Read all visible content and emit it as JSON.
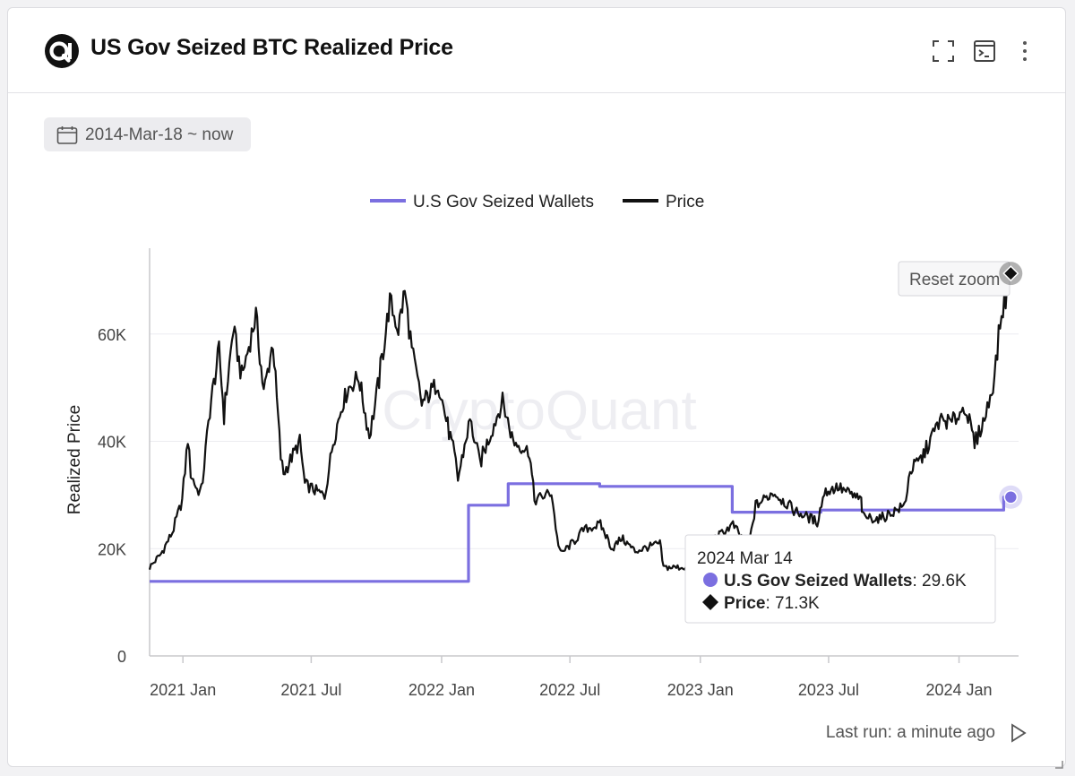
{
  "header": {
    "title": "US Gov Seized BTC Realized Price",
    "icons": [
      "fullscreen-icon",
      "terminal-icon",
      "more-vertical-icon"
    ]
  },
  "date_range": "2014-Mar-18 ~ now",
  "watermark": "CryptoQuant",
  "reset_zoom_label": "Reset zoom",
  "tooltip": {
    "date": "2024 Mar 14",
    "rows": [
      {
        "label": "U.S Gov Seized Wallets",
        "value": "29.6K"
      },
      {
        "label": "Price",
        "value": "71.3K"
      }
    ]
  },
  "footer": {
    "last_run": "Last run: a minute ago"
  },
  "colors": {
    "seized": "#7b6fe0",
    "price": "#111111",
    "grid": "#ececf0",
    "axis_text": "#444444"
  },
  "chart_data": {
    "type": "line",
    "title": "",
    "xlabel": "",
    "ylabel": "Realized Price",
    "x_tick_labels": [
      "2021 Jan",
      "2021 Jul",
      "2022 Jan",
      "2022 Jul",
      "2023 Jan",
      "2023 Jul",
      "2024 Jan"
    ],
    "y_tick_labels": [
      "0",
      "20K",
      "40K",
      "60K"
    ],
    "x_range": [
      "2020-11-15",
      "2024-03-25"
    ],
    "ylim": [
      0,
      76000
    ],
    "grid": true,
    "legend_position": "top-center",
    "series": [
      {
        "name": "U.S Gov Seized Wallets",
        "color": "#7b6fe0",
        "step": true,
        "points": [
          [
            "2020-11-15",
            13900
          ],
          [
            "2022-02-08",
            13900
          ],
          [
            "2022-02-08",
            28100
          ],
          [
            "2022-04-05",
            28100
          ],
          [
            "2022-04-05",
            32100
          ],
          [
            "2022-08-12",
            32100
          ],
          [
            "2022-08-12",
            31600
          ],
          [
            "2023-02-15",
            31600
          ],
          [
            "2023-02-15",
            26800
          ],
          [
            "2023-06-20",
            26800
          ],
          [
            "2023-06-20",
            27200
          ],
          [
            "2024-03-04",
            27200
          ],
          [
            "2024-03-04",
            29600
          ],
          [
            "2024-03-14",
            29600
          ]
        ]
      },
      {
        "name": "Price",
        "color": "#111111",
        "points": [
          [
            "2020-11-15",
            16500
          ],
          [
            "2020-12-01",
            19000
          ],
          [
            "2020-12-17",
            23000
          ],
          [
            "2020-12-31",
            29000
          ],
          [
            "2021-01-08",
            40500
          ],
          [
            "2021-01-12",
            34000
          ],
          [
            "2021-01-21",
            31000
          ],
          [
            "2021-01-27",
            30500
          ],
          [
            "2021-02-08",
            46000
          ],
          [
            "2021-02-21",
            57000
          ],
          [
            "2021-02-28",
            45000
          ],
          [
            "2021-03-13",
            61000
          ],
          [
            "2021-03-25",
            52000
          ],
          [
            "2021-04-14",
            63500
          ],
          [
            "2021-04-25",
            49000
          ],
          [
            "2021-05-08",
            58500
          ],
          [
            "2021-05-19",
            37000
          ],
          [
            "2021-05-23",
            34000
          ],
          [
            "2021-06-15",
            40000
          ],
          [
            "2021-06-22",
            32000
          ],
          [
            "2021-07-20",
            29800
          ],
          [
            "2021-08-01",
            40000
          ],
          [
            "2021-08-14",
            47000
          ],
          [
            "2021-08-23",
            50000
          ],
          [
            "2021-09-06",
            52000
          ],
          [
            "2021-09-21",
            41000
          ],
          [
            "2021-10-01",
            48000
          ],
          [
            "2021-10-20",
            66000
          ],
          [
            "2021-11-01",
            61000
          ],
          [
            "2021-11-10",
            68000
          ],
          [
            "2021-11-20",
            57000
          ],
          [
            "2021-12-04",
            47000
          ],
          [
            "2021-12-27",
            51000
          ],
          [
            "2022-01-21",
            36000
          ],
          [
            "2022-01-24",
            33000
          ],
          [
            "2022-02-10",
            44000
          ],
          [
            "2022-02-24",
            36000
          ],
          [
            "2022-03-28",
            47500
          ],
          [
            "2022-04-12",
            40000
          ],
          [
            "2022-05-05",
            38000
          ],
          [
            "2022-05-12",
            29000
          ],
          [
            "2022-06-05",
            30500
          ],
          [
            "2022-06-13",
            22000
          ],
          [
            "2022-06-18",
            19000
          ],
          [
            "2022-07-08",
            21500
          ],
          [
            "2022-07-20",
            23500
          ],
          [
            "2022-08-13",
            24500
          ],
          [
            "2022-08-30",
            20000
          ],
          [
            "2022-09-12",
            22000
          ],
          [
            "2022-10-01",
            19500
          ],
          [
            "2022-11-05",
            21000
          ],
          [
            "2022-11-10",
            16500
          ],
          [
            "2022-12-30",
            16500
          ],
          [
            "2023-01-14",
            21000
          ],
          [
            "2023-02-16",
            24500
          ],
          [
            "2023-03-10",
            20000
          ],
          [
            "2023-03-20",
            28000
          ],
          [
            "2023-04-14",
            30500
          ],
          [
            "2023-05-15",
            27000
          ],
          [
            "2023-06-15",
            25000
          ],
          [
            "2023-06-25",
            30500
          ],
          [
            "2023-07-14",
            31500
          ],
          [
            "2023-08-16",
            29000
          ],
          [
            "2023-08-18",
            26000
          ],
          [
            "2023-09-11",
            25500
          ],
          [
            "2023-10-16",
            28000
          ],
          [
            "2023-10-24",
            34500
          ],
          [
            "2023-11-10",
            37000
          ],
          [
            "2023-12-05",
            44000
          ],
          [
            "2023-12-22",
            43500
          ],
          [
            "2024-01-10",
            46500
          ],
          [
            "2024-01-23",
            39500
          ],
          [
            "2024-02-08",
            45000
          ],
          [
            "2024-02-20",
            52000
          ],
          [
            "2024-02-28",
            62000
          ],
          [
            "2024-03-05",
            66000
          ],
          [
            "2024-03-14",
            71300
          ]
        ]
      }
    ],
    "highlight": {
      "date": "2024-03-14",
      "seized": 29600,
      "price": 71300
    }
  }
}
